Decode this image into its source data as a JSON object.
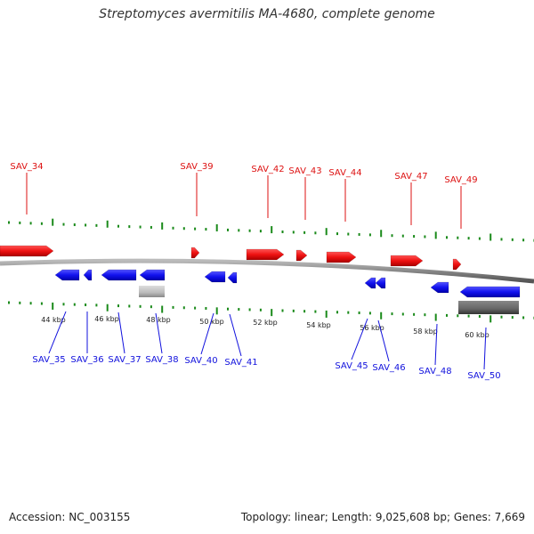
{
  "header": {
    "title": "Streptomyces avermitilis MA-4680, complete genome"
  },
  "footer": {
    "accession": "Accession: NC_003155",
    "summary": "Topology: linear; Length: 9,025,608 bp; Genes: 7,669"
  },
  "colors": {
    "forward_gene": "#dd1111",
    "reverse_gene": "#1111dd",
    "tick": "#1a8a1a",
    "backbone": "#888888",
    "other_feature": "#bbbbbb"
  },
  "axis_labels": [
    "44 kbp",
    "46 kbp",
    "48 kbp",
    "50 kbp",
    "52 kbp",
    "54 kbp",
    "56 kbp",
    "58 kbp",
    "60 kbp"
  ],
  "forward_genes": [
    {
      "label": "SAV_34"
    },
    {
      "label": "SAV_39"
    },
    {
      "label": "SAV_42"
    },
    {
      "label": "SAV_43"
    },
    {
      "label": "SAV_44"
    },
    {
      "label": "SAV_47"
    },
    {
      "label": "SAV_49"
    }
  ],
  "reverse_genes": [
    {
      "label": "SAV_35"
    },
    {
      "label": "SAV_36"
    },
    {
      "label": "SAV_37"
    },
    {
      "label": "SAV_38"
    },
    {
      "label": "SAV_40"
    },
    {
      "label": "SAV_41"
    },
    {
      "label": "SAV_45"
    },
    {
      "label": "SAV_46"
    },
    {
      "label": "SAV_48"
    },
    {
      "label": "SAV_50"
    }
  ]
}
